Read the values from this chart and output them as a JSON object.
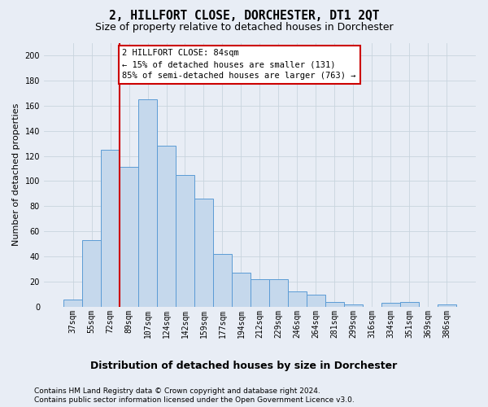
{
  "title": "2, HILLFORT CLOSE, DORCHESTER, DT1 2QT",
  "subtitle": "Size of property relative to detached houses in Dorchester",
  "xlabel": "Distribution of detached houses by size in Dorchester",
  "ylabel": "Number of detached properties",
  "footnote1": "Contains HM Land Registry data © Crown copyright and database right 2024.",
  "footnote2": "Contains public sector information licensed under the Open Government Licence v3.0.",
  "categories": [
    "37sqm",
    "55sqm",
    "72sqm",
    "89sqm",
    "107sqm",
    "124sqm",
    "142sqm",
    "159sqm",
    "177sqm",
    "194sqm",
    "212sqm",
    "229sqm",
    "246sqm",
    "264sqm",
    "281sqm",
    "299sqm",
    "316sqm",
    "334sqm",
    "351sqm",
    "369sqm",
    "386sqm"
  ],
  "values": [
    6,
    53,
    125,
    111,
    165,
    128,
    105,
    86,
    42,
    27,
    22,
    22,
    12,
    10,
    4,
    2,
    0,
    3,
    4,
    0,
    2
  ],
  "bar_color": "#c5d8ec",
  "bar_edge_color": "#5b9bd5",
  "grid_color": "#c8d4de",
  "vline_index": 2,
  "vline_color": "#cc0000",
  "annotation_line1": "2 HILLFORT CLOSE: 84sqm",
  "annotation_line2": "← 15% of detached houses are smaller (131)",
  "annotation_line3": "85% of semi-detached houses are larger (763) →",
  "annotation_box_color": "#ffffff",
  "annotation_box_edge": "#cc0000",
  "ylim": [
    0,
    210
  ],
  "yticks": [
    0,
    20,
    40,
    60,
    80,
    100,
    120,
    140,
    160,
    180,
    200
  ],
  "bg_color": "#e8edf5",
  "title_fontsize": 10.5,
  "subtitle_fontsize": 9,
  "ylabel_fontsize": 8,
  "xlabel_fontsize": 9,
  "tick_fontsize": 7,
  "footnote_fontsize": 6.5
}
